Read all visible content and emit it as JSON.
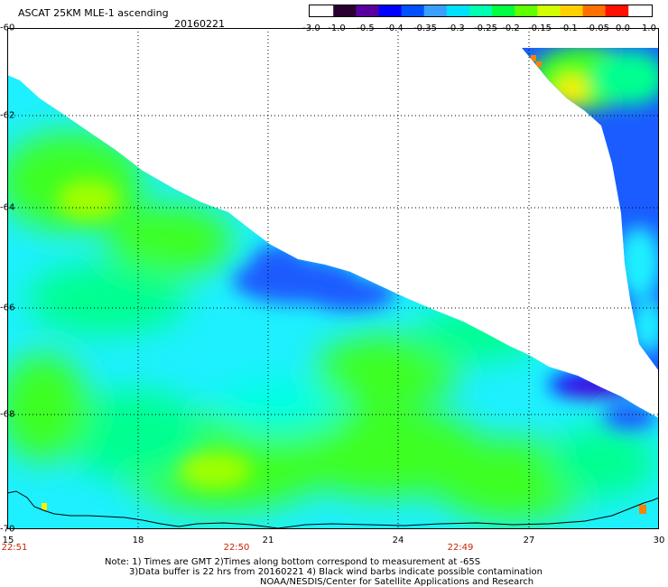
{
  "header": {
    "title": "ASCAT 25KM MLE-1 ascending",
    "date": "20160221"
  },
  "colorbar": {
    "labels": [
      "-3.0",
      "-1.0",
      "-0.5",
      "-0.4",
      "-0.35",
      "-0.3",
      "-0.25",
      "-0.2",
      "-0.15",
      "-0.1",
      "-0.05",
      "0.0",
      "1.0"
    ],
    "colors": [
      "#2a0030",
      "#5a00a0",
      "#0000ff",
      "#0050ff",
      "#3aa0ff",
      "#00e0ff",
      "#00ffb0",
      "#00ff40",
      "#60ff00",
      "#d0ff00",
      "#ffd000",
      "#ff7000",
      "#ff1000"
    ]
  },
  "map": {
    "latitude_labels": [
      "-60",
      "-62",
      "-64",
      "-66",
      "-68",
      "-70"
    ],
    "longitude_labels": [
      "15",
      "18",
      "21",
      "24",
      "27",
      "30"
    ],
    "time_labels": [
      "22:51",
      "22:50",
      "22:49"
    ],
    "colors": {
      "cyan": "#1ef0ff",
      "light_cyan": "#00ffe0",
      "green_cyan": "#00ff90",
      "green": "#3cff20",
      "yellow_green": "#a0ff00",
      "yellow": "#ffee00",
      "orange": "#ff8000",
      "blue": "#1a5cff",
      "deep_blue": "#0000ff",
      "purple": "#5000c8"
    }
  },
  "footer": {
    "note_line1": "Note: 1) Times are GMT 2)Times along bottom correspond to measurement at -65S",
    "note_line2": "3)Data buffer is 22 hrs from 20160221 4) Black wind barbs indicate possible contamination",
    "note_line3": "NOAA/NESDIS/Center for Satellite Applications and Research"
  }
}
